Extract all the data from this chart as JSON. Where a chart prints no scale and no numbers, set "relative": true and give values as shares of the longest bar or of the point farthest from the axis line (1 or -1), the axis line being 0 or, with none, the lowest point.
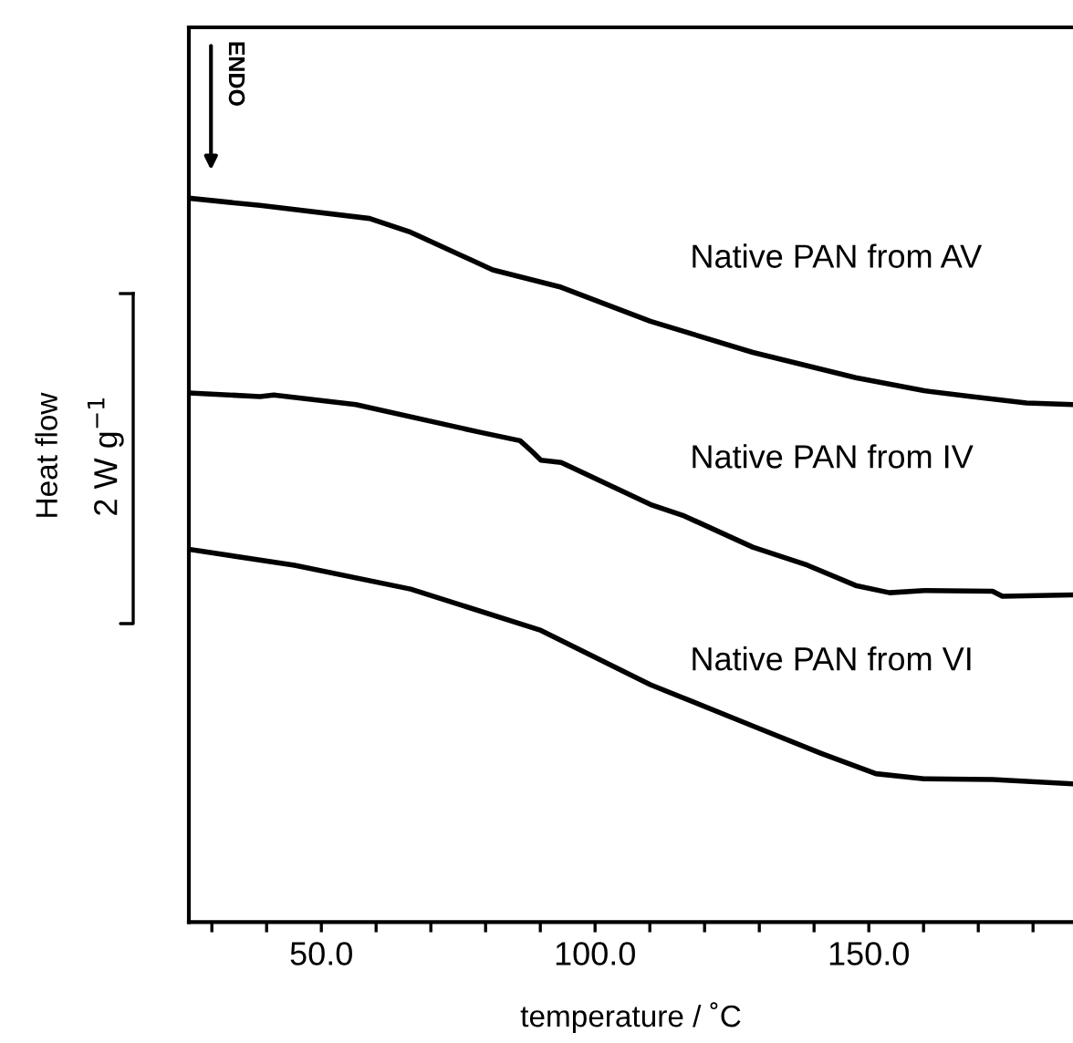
{
  "chart_data": {
    "type": "line",
    "relative": true,
    "xlabel": "temperature / ˚C",
    "ylabel": "Heat flow",
    "tick_labels": "x",
    "grid": false,
    "legend": false,
    "line_style": "solid",
    "marker": "none",
    "xlim": [
      25.8,
      187.3
    ],
    "xticks": [
      {
        "value": 30,
        "label": null
      },
      {
        "value": 40,
        "label": null
      },
      {
        "value": 50,
        "label": "50.0"
      },
      {
        "value": 60,
        "label": null
      },
      {
        "value": 70,
        "label": null
      },
      {
        "value": 80,
        "label": null
      },
      {
        "value": 90,
        "label": null
      },
      {
        "value": 100,
        "label": "100.0"
      },
      {
        "value": 110,
        "label": null
      },
      {
        "value": 120,
        "label": null
      },
      {
        "value": 130,
        "label": null
      },
      {
        "value": 140,
        "label": null
      },
      {
        "value": 150,
        "label": "150.0"
      },
      {
        "value": 160,
        "label": null
      },
      {
        "value": 170,
        "label": null
      },
      {
        "value": 180,
        "label": null
      }
    ],
    "annotations": [
      "ENDO",
      "2 W g$^{−1}$"
    ],
    "series": [
      {
        "name": "Native PAN from AV",
        "color": "#000000",
        "x": [
          25.8,
          38.8,
          58.8,
          66.3,
          81.3,
          93.8,
          110.1,
          128.8,
          147.6,
          160.1,
          168.8,
          178.8,
          187.3
        ],
        "values": [
          1.0,
          0.99,
          0.972,
          0.953,
          0.901,
          0.877,
          0.83,
          0.787,
          0.752,
          0.734,
          0.726,
          0.717,
          0.715
        ]
      },
      {
        "name": "Native PAN from IV",
        "color": "#000000",
        "x": [
          25.8,
          38.8,
          41.3,
          56.3,
          78.8,
          86.3,
          88.5,
          90.1,
          93.8,
          110.1,
          116.3,
          128.8,
          138.8,
          147.6,
          153.8,
          160.1,
          172.6,
          174.4,
          187.3
        ],
        "values": [
          0.731,
          0.726,
          0.728,
          0.715,
          0.677,
          0.665,
          0.65,
          0.638,
          0.635,
          0.577,
          0.561,
          0.518,
          0.493,
          0.465,
          0.455,
          0.458,
          0.457,
          0.45,
          0.452
        ]
      },
      {
        "name": "Native PAN from VI",
        "color": "#000000",
        "x": [
          25.8,
          45.1,
          66.3,
          90.1,
          110.1,
          128.8,
          141.3,
          151.3,
          160.1,
          172.6,
          187.3
        ],
        "values": [
          0.515,
          0.493,
          0.46,
          0.403,
          0.328,
          0.271,
          0.233,
          0.205,
          0.198,
          0.197,
          0.191
        ]
      }
    ]
  }
}
